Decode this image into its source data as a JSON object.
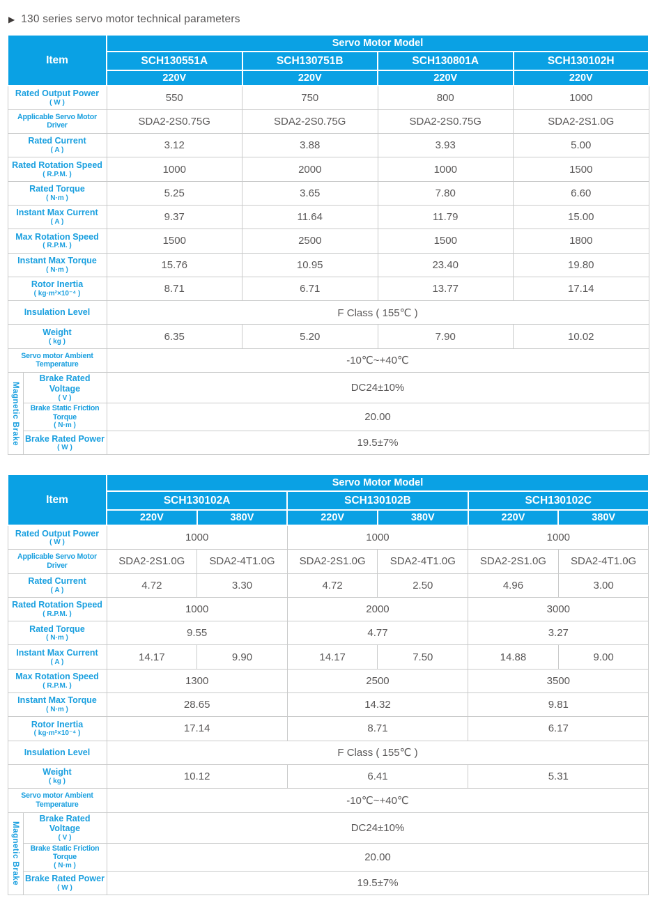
{
  "title": {
    "arrow": "▶",
    "text": "130 series servo motor technical parameters"
  },
  "colors": {
    "header_blue": "#0aa1e4",
    "label_blue": "#199fdf",
    "value_gray": "#595757",
    "border_gray": "#c9caca"
  },
  "tables": [
    {
      "item_label": "Item",
      "model_header": "Servo Motor Model",
      "models": [
        {
          "name": "SCH130551A",
          "voltages": [
            "220V"
          ]
        },
        {
          "name": "SCH130751B",
          "voltages": [
            "220V"
          ]
        },
        {
          "name": "SCH130801A",
          "voltages": [
            "220V"
          ]
        },
        {
          "name": "SCH130102H",
          "voltages": [
            "220V"
          ]
        }
      ],
      "rows": [
        {
          "label": "Rated Output Power",
          "unit": "( W )",
          "cells": [
            {
              "t": "550"
            },
            {
              "t": "750"
            },
            {
              "t": "800"
            },
            {
              "t": "1000"
            }
          ]
        },
        {
          "label": "Applicable Servo Motor Driver",
          "unit": "",
          "cells": [
            {
              "t": "SDA2-2S0.75G"
            },
            {
              "t": "SDA2-2S0.75G"
            },
            {
              "t": "SDA2-2S0.75G"
            },
            {
              "t": "SDA2-2S1.0G"
            }
          ]
        },
        {
          "label": "Rated Current",
          "unit": "( A )",
          "cells": [
            {
              "t": "3.12"
            },
            {
              "t": "3.88"
            },
            {
              "t": "3.93"
            },
            {
              "t": "5.00"
            }
          ]
        },
        {
          "label": "Rated Rotation Speed",
          "unit": "( R.P.M. )",
          "cells": [
            {
              "t": "1000"
            },
            {
              "t": "2000"
            },
            {
              "t": "1000"
            },
            {
              "t": "1500"
            }
          ]
        },
        {
          "label": "Rated Torque",
          "unit": "( N·m )",
          "cells": [
            {
              "t": "5.25"
            },
            {
              "t": "3.65"
            },
            {
              "t": "7.80"
            },
            {
              "t": "6.60"
            }
          ]
        },
        {
          "label": "Instant Max Current",
          "unit": "( A )",
          "cells": [
            {
              "t": "9.37"
            },
            {
              "t": "11.64"
            },
            {
              "t": "11.79"
            },
            {
              "t": "15.00"
            }
          ]
        },
        {
          "label": "Max Rotation Speed",
          "unit": "( R.P.M. )",
          "cells": [
            {
              "t": "1500"
            },
            {
              "t": "2500"
            },
            {
              "t": "1500"
            },
            {
              "t": "1800"
            }
          ]
        },
        {
          "label": "Instant Max Torque",
          "unit": "( N·m )",
          "cells": [
            {
              "t": "15.76"
            },
            {
              "t": "10.95"
            },
            {
              "t": "23.40"
            },
            {
              "t": "19.80"
            }
          ]
        },
        {
          "label": "Rotor Inertia",
          "unit": "( kg·m²×10⁻⁴ )",
          "cells": [
            {
              "t": "8.71"
            },
            {
              "t": "6.71"
            },
            {
              "t": "13.77"
            },
            {
              "t": "17.14"
            }
          ]
        },
        {
          "label": "Insulation Level",
          "unit": "",
          "cells": [
            {
              "t": "F Class ( 155℃ )",
              "span": 4
            }
          ]
        },
        {
          "label": "Weight",
          "unit": "( kg )",
          "cells": [
            {
              "t": "6.35"
            },
            {
              "t": "5.20"
            },
            {
              "t": "7.90"
            },
            {
              "t": "10.02"
            }
          ]
        },
        {
          "label": "Servo motor Ambient Temperature",
          "unit": "",
          "cells": [
            {
              "t": "-10℃~+40℃",
              "span": 4
            }
          ]
        }
      ],
      "brake_group": {
        "label": "Magnetic Brake",
        "rows": [
          {
            "label": "Brake Rated Voltage",
            "unit": "( V )",
            "cells": [
              {
                "t": "DC24±10%",
                "span": 4
              }
            ]
          },
          {
            "label": "Brake Static Friction Torque",
            "unit": "( N·m )",
            "cells": [
              {
                "t": "20.00",
                "span": 4
              }
            ]
          },
          {
            "label": "Brake Rated Power",
            "unit": "( W )",
            "cells": [
              {
                "t": "19.5±7%",
                "span": 4
              }
            ]
          }
        ]
      }
    },
    {
      "item_label": "Item",
      "model_header": "Servo Motor Model",
      "models": [
        {
          "name": "SCH130102A",
          "voltages": [
            "220V",
            "380V"
          ]
        },
        {
          "name": "SCH130102B",
          "voltages": [
            "220V",
            "380V"
          ]
        },
        {
          "name": "SCH130102C",
          "voltages": [
            "220V",
            "380V"
          ]
        }
      ],
      "rows": [
        {
          "label": "Rated Output Power",
          "unit": "( W )",
          "cells": [
            {
              "t": "1000",
              "span": 2
            },
            {
              "t": "1000",
              "span": 2
            },
            {
              "t": "1000",
              "span": 2
            }
          ]
        },
        {
          "label": "Applicable Servo Motor Driver",
          "unit": "",
          "cells": [
            {
              "t": "SDA2-2S1.0G"
            },
            {
              "t": "SDA2-4T1.0G"
            },
            {
              "t": "SDA2-2S1.0G"
            },
            {
              "t": "SDA2-4T1.0G"
            },
            {
              "t": "SDA2-2S1.0G"
            },
            {
              "t": "SDA2-4T1.0G"
            }
          ]
        },
        {
          "label": "Rated Current",
          "unit": "( A )",
          "cells": [
            {
              "t": "4.72"
            },
            {
              "t": "3.30"
            },
            {
              "t": "4.72"
            },
            {
              "t": "2.50"
            },
            {
              "t": "4.96"
            },
            {
              "t": "3.00"
            }
          ]
        },
        {
          "label": "Rated Rotation Speed",
          "unit": "( R.P.M. )",
          "cells": [
            {
              "t": "1000",
              "span": 2
            },
            {
              "t": "2000",
              "span": 2
            },
            {
              "t": "3000",
              "span": 2
            }
          ]
        },
        {
          "label": "Rated Torque",
          "unit": "( N·m )",
          "cells": [
            {
              "t": "9.55",
              "span": 2
            },
            {
              "t": "4.77",
              "span": 2
            },
            {
              "t": "3.27",
              "span": 2
            }
          ]
        },
        {
          "label": "Instant Max Current",
          "unit": "( A )",
          "cells": [
            {
              "t": "14.17"
            },
            {
              "t": "9.90"
            },
            {
              "t": "14.17"
            },
            {
              "t": "7.50"
            },
            {
              "t": "14.88"
            },
            {
              "t": "9.00"
            }
          ]
        },
        {
          "label": "Max Rotation Speed",
          "unit": "( R.P.M. )",
          "cells": [
            {
              "t": "1300",
              "span": 2
            },
            {
              "t": "2500",
              "span": 2
            },
            {
              "t": "3500",
              "span": 2
            }
          ]
        },
        {
          "label": "Instant Max Torque",
          "unit": "( N·m )",
          "cells": [
            {
              "t": "28.65",
              "span": 2
            },
            {
              "t": "14.32",
              "span": 2
            },
            {
              "t": "9.81",
              "span": 2
            }
          ]
        },
        {
          "label": "Rotor Inertia",
          "unit": "( kg·m²×10⁻⁴ )",
          "cells": [
            {
              "t": "17.14",
              "span": 2
            },
            {
              "t": "8.71",
              "span": 2
            },
            {
              "t": "6.17",
              "span": 2
            }
          ]
        },
        {
          "label": "Insulation Level",
          "unit": "",
          "cells": [
            {
              "t": "F Class ( 155℃ )",
              "span": 6
            }
          ]
        },
        {
          "label": "Weight",
          "unit": "( kg )",
          "cells": [
            {
              "t": "10.12",
              "span": 2
            },
            {
              "t": "6.41",
              "span": 2
            },
            {
              "t": "5.31",
              "span": 2
            }
          ]
        },
        {
          "label": "Servo motor Ambient Temperature",
          "unit": "",
          "cells": [
            {
              "t": "-10℃~+40℃",
              "span": 6
            }
          ]
        }
      ],
      "brake_group": {
        "label": "Magnetic Brake",
        "rows": [
          {
            "label": "Brake Rated Voltage",
            "unit": "( V )",
            "cells": [
              {
                "t": "DC24±10%",
                "span": 6
              }
            ]
          },
          {
            "label": "Brake Static Friction Torque",
            "unit": "( N·m )",
            "cells": [
              {
                "t": "20.00",
                "span": 6
              }
            ]
          },
          {
            "label": "Brake Rated Power",
            "unit": "( W )",
            "cells": [
              {
                "t": "19.5±7%",
                "span": 6
              }
            ]
          }
        ]
      }
    }
  ]
}
